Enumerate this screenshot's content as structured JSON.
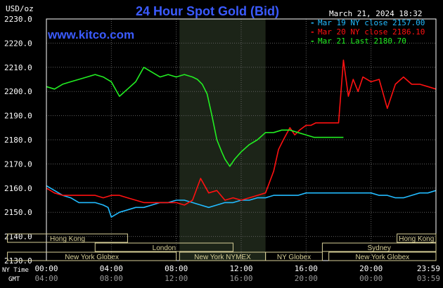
{
  "header": {
    "title": "24 Hour Spot Gold (Bid)",
    "units": "USD/oz",
    "date_time": "March 21, 2024 18:32",
    "watermark": "www.kitco.com"
  },
  "colors": {
    "background": "#000000",
    "plot_border": "#ffffff",
    "grid": "#606060",
    "ny_shade": "#1c2418",
    "title": "#3b5bff",
    "text": "#ffffff",
    "session_bar": "#d7cf98",
    "mar19": "#22bbff",
    "mar20": "#ff1111",
    "mar21": "#22ee22"
  },
  "time_axis": {
    "ny_label": "NY Time",
    "gmt_label": "GMT"
  },
  "sessions": [
    {
      "label": "Hong Kong",
      "start": -2.4,
      "end": 5.0,
      "row": 0
    },
    {
      "label": "Hong Kong",
      "start": 21.6,
      "end": 24.0,
      "row": 0
    },
    {
      "label": "London",
      "start": 3.0,
      "end": 11.5,
      "row": 1
    },
    {
      "label": "Sydney",
      "start": 17.0,
      "end": 24.0,
      "row": 1
    },
    {
      "label": "New York Globex",
      "start": -2.4,
      "end": 8.0,
      "row": 2
    },
    {
      "label": "New York NYMEX",
      "start": 8.2,
      "end": 13.5,
      "row": 2
    },
    {
      "label": "NY Globex",
      "start": 13.5,
      "end": 17.0,
      "row": 2
    },
    {
      "label": "New York Globex",
      "start": 17.4,
      "end": 24.0,
      "row": 2
    }
  ],
  "legend": [
    {
      "label": "Mar 19 NY close 2157.00",
      "color": "#22bbff"
    },
    {
      "label": "Mar 20 NY close 2186.10",
      "color": "#ff1111"
    },
    {
      "label": "Mar 21 Last 2180.70",
      "color": "#22ee22"
    }
  ],
  "chart_data": {
    "type": "line",
    "title": "24 Hour Spot Gold (Bid)",
    "ylabel": "USD/oz",
    "xlim": [
      0,
      24
    ],
    "ylim": [
      2130,
      2230
    ],
    "grid": true,
    "legend_position": "top-right",
    "ny_session_shade": [
      8.2,
      13.5
    ],
    "y_ticks": [
      "2130.0",
      "2140.0",
      "2150.0",
      "2160.0",
      "2170.0",
      "2180.0",
      "2190.0",
      "2200.0",
      "2210.0",
      "2220.0",
      "2230.0"
    ],
    "x_ticks": [
      {
        "ny": "00:00",
        "gmt": "04:00",
        "x": 0
      },
      {
        "ny": "04:00",
        "gmt": "08:00",
        "x": 4
      },
      {
        "ny": "08:00",
        "gmt": "12:00",
        "x": 8
      },
      {
        "ny": "12:00",
        "gmt": "16:00",
        "x": 12
      },
      {
        "ny": "16:00",
        "gmt": "20:00",
        "x": 16
      },
      {
        "ny": "20:00",
        "gmt": "00:00",
        "x": 20
      },
      {
        "ny": "23:59",
        "gmt": "03:59",
        "x": 24
      }
    ],
    "series": [
      {
        "name": "Mar 19 NY close 2157.00",
        "color": "#22bbff",
        "x": [
          0,
          0.5,
          1,
          1.5,
          2,
          2.5,
          3,
          3.5,
          3.8,
          4,
          4.5,
          5,
          5.5,
          6,
          6.5,
          7,
          7.5,
          8,
          8.5,
          9,
          9.5,
          10,
          10.5,
          11,
          11.5,
          12,
          12.5,
          13,
          13.5,
          14,
          14.5,
          15,
          15.5,
          16,
          16.5,
          17,
          17.5,
          18,
          18.5,
          19,
          19.5,
          20,
          20.5,
          21,
          21.5,
          22,
          22.5,
          23,
          23.5,
          24
        ],
        "y": [
          2161,
          2159,
          2157,
          2156,
          2154,
          2154,
          2154,
          2153,
          2152,
          2148,
          2150,
          2151,
          2152,
          2152,
          2153,
          2154,
          2154,
          2155,
          2155,
          2154,
          2153,
          2152,
          2153,
          2154,
          2154,
          2155,
          2155,
          2156,
          2156,
          2157,
          2157,
          2157,
          2157,
          2158,
          2158,
          2158,
          2158,
          2158,
          2158,
          2158,
          2158,
          2158,
          2157,
          2157,
          2156,
          2156,
          2157,
          2158,
          2158,
          2159
        ]
      },
      {
        "name": "Mar 20 NY close 2186.10",
        "color": "#ff1111",
        "x": [
          0,
          0.5,
          1,
          1.5,
          2,
          2.5,
          3,
          3.5,
          4,
          4.5,
          5,
          5.5,
          6,
          6.5,
          7,
          7.5,
          8,
          8.5,
          9,
          9.5,
          10,
          10.5,
          11,
          11.5,
          12,
          12.5,
          13,
          13.5,
          14,
          14.3,
          14.6,
          15,
          15.3,
          15.6,
          16,
          16.3,
          16.6,
          17,
          17.5,
          18,
          18.3,
          18.6,
          18.9,
          19.2,
          19.5,
          20,
          20.5,
          21,
          21.5,
          22,
          22.5,
          23,
          23.5,
          24
        ],
        "y": [
          2160,
          2158,
          2157,
          2157,
          2157,
          2157,
          2157,
          2156,
          2157,
          2157,
          2156,
          2155,
          2154,
          2154,
          2154,
          2154,
          2154,
          2153,
          2155,
          2164,
          2158,
          2159,
          2155,
          2156,
          2155,
          2156,
          2157,
          2158,
          2167,
          2176,
          2180,
          2185,
          2182,
          2184,
          2186,
          2186,
          2187,
          2187,
          2187,
          2187,
          2213,
          2198,
          2205,
          2200,
          2206,
          2204,
          2205,
          2193,
          2203,
          2206,
          2203,
          2203,
          2202,
          2201
        ]
      },
      {
        "name": "Mar 21 Last 2180.70",
        "color": "#22ee22",
        "x": [
          0,
          0.5,
          1,
          1.5,
          2,
          2.5,
          3,
          3.5,
          4,
          4.5,
          5,
          5.5,
          6,
          6.5,
          7,
          7.5,
          8,
          8.5,
          9,
          9.3,
          9.6,
          9.9,
          10.2,
          10.5,
          10.8,
          11,
          11.3,
          11.6,
          12,
          12.5,
          13,
          13.5,
          14,
          14.5,
          15,
          15.5,
          16,
          16.5,
          17,
          17.5,
          18,
          18.3
        ],
        "y": [
          2202,
          2201,
          2203,
          2204,
          2205,
          2206,
          2207,
          2206,
          2204,
          2198,
          2201,
          2204,
          2210,
          2208,
          2206,
          2207,
          2206,
          2207,
          2206,
          2205,
          2203,
          2199,
          2190,
          2180,
          2175,
          2172,
          2169,
          2172,
          2175,
          2178,
          2180,
          2183,
          2183,
          2184,
          2184,
          2183,
          2182,
          2181,
          2181,
          2181,
          2181,
          2181
        ]
      }
    ]
  }
}
